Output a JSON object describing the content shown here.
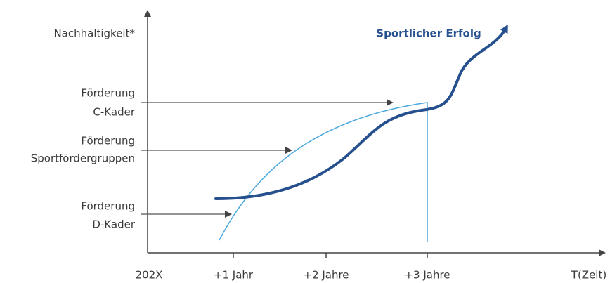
{
  "axis": {
    "y_label": "Nachhaltigkeit*",
    "x_origin": "202X",
    "x_label": "T(Zeit)",
    "x_ticks": [
      "+1 Jahr",
      "+2 Jahre",
      "+3 Jahre"
    ]
  },
  "levels": [
    {
      "line1": "Förderung",
      "line2": "C-Kader"
    },
    {
      "line1": "Förderung",
      "line2": "Sportfördergruppen"
    },
    {
      "line1": "Förderung",
      "line2": "D-Kader"
    }
  ],
  "curve_label": "Sportlicher Erfolg"
}
